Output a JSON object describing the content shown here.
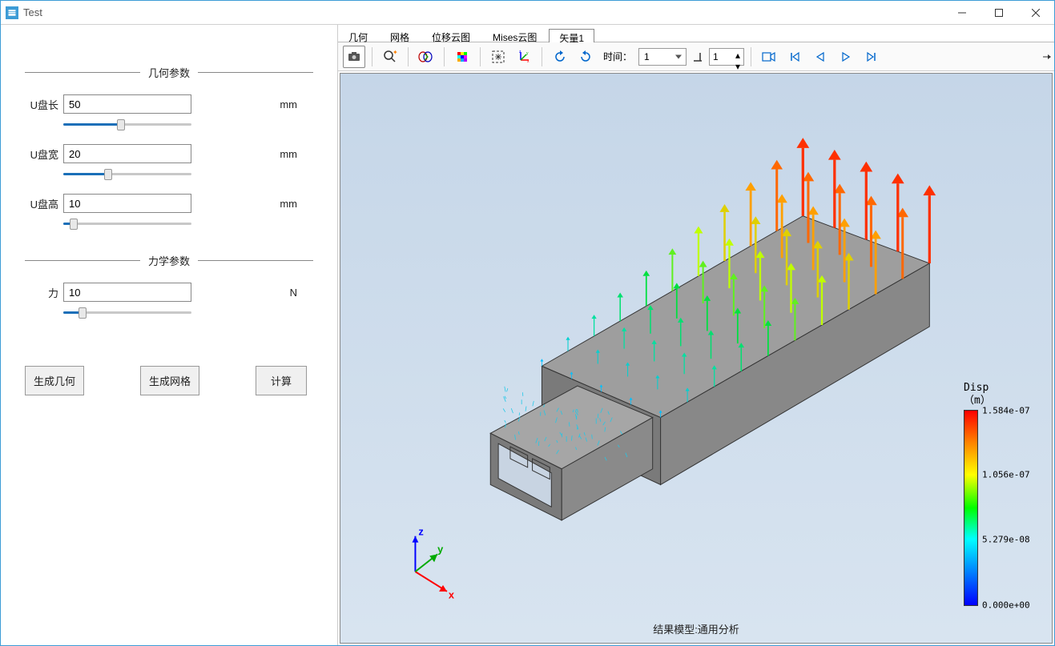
{
  "window": {
    "title": "Test"
  },
  "left_panel": {
    "section_geom": "几何参数",
    "section_force": "力学参数",
    "params": {
      "length": {
        "label": "U盘长",
        "value": "50",
        "unit": "mm",
        "slider_pct": 45
      },
      "width": {
        "label": "U盘宽",
        "value": "20",
        "unit": "mm",
        "slider_pct": 35
      },
      "height": {
        "label": "U盘高",
        "value": "10",
        "unit": "mm",
        "slider_pct": 8
      },
      "force": {
        "label": "力",
        "value": "10",
        "unit": "N",
        "slider_pct": 15
      }
    },
    "buttons": {
      "gen_geom": "生成几何",
      "gen_mesh": "生成网格",
      "compute": "计算"
    }
  },
  "tabs": {
    "geom": "几何",
    "mesh": "网格",
    "disp": "位移云图",
    "mises": "Mises云图",
    "vector": "矢量1"
  },
  "toolbar": {
    "time_label": "时间：",
    "time_value": "1",
    "spin_value": "1"
  },
  "legend": {
    "title_l1": "Disp",
    "title_l2": "（m）",
    "ticks": [
      {
        "pct": 0,
        "label": "1.584e-07"
      },
      {
        "pct": 33,
        "label": "1.056e-07"
      },
      {
        "pct": 66,
        "label": "5.279e-08"
      },
      {
        "pct": 100,
        "label": "0.000e+00"
      }
    ]
  },
  "viewport": {
    "result_text": "结果模型:通用分析",
    "model_fill": "#9a9a9a",
    "model_fill_light": "#b0b0b0",
    "model_fill_dark": "#808080",
    "edge_color": "#333333",
    "bg_top": "#c5d6e8",
    "bg_bottom": "#d8e4f0"
  },
  "arrow_palette": {
    "low": "#00c0ff",
    "mid_low": "#00e060",
    "mid": "#c0ff00",
    "mid_high": "#ffc000",
    "high": "#ff3000"
  }
}
